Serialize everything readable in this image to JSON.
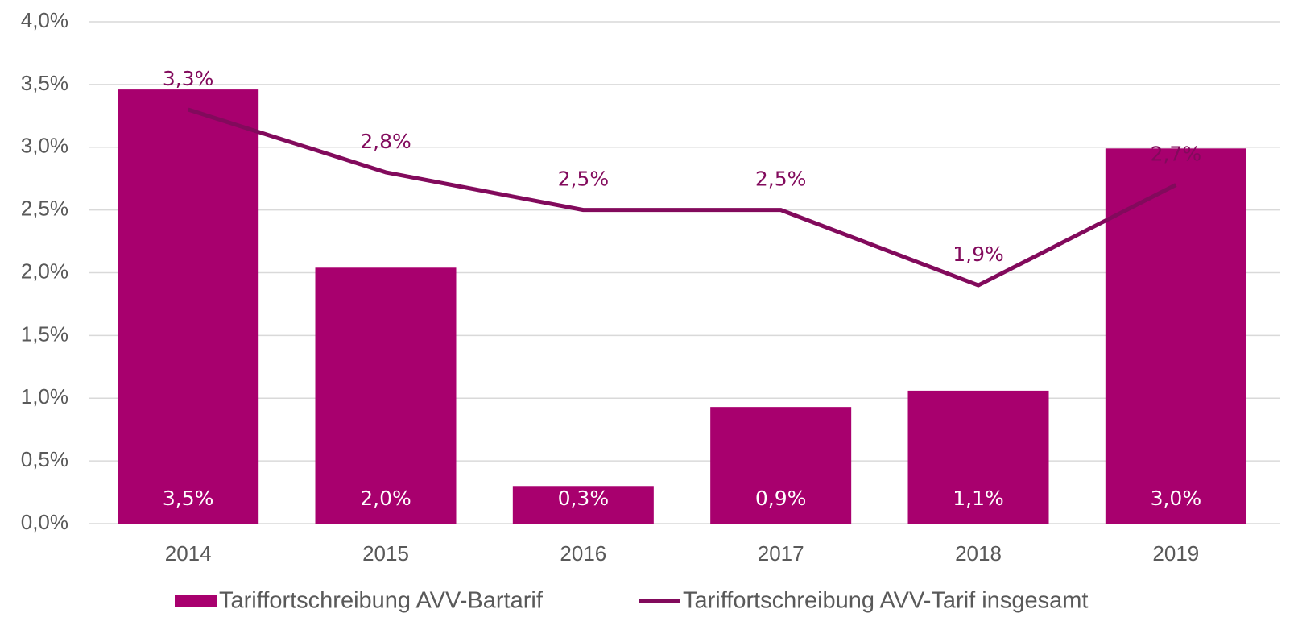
{
  "chart_data": {
    "type": "bar",
    "categories": [
      "2014",
      "2015",
      "2016",
      "2017",
      "2018",
      "2019"
    ],
    "series": [
      {
        "name": "Tariffortschreibung AVV-Bartarif",
        "type": "bar",
        "color": "#a8006e",
        "values": [
          3.46,
          2.04,
          0.3,
          0.93,
          1.06,
          2.99
        ],
        "value_labels": [
          "3,5%",
          "2,0%",
          "0,3%",
          "0,9%",
          "1,1%",
          "3,0%"
        ]
      },
      {
        "name": "Tariffortschreibung AVV-Tarif insgesamt",
        "type": "line",
        "color": "#820a5c",
        "values": [
          3.3,
          2.8,
          2.5,
          2.5,
          1.9,
          2.7
        ],
        "value_labels": [
          "3,3%",
          "2,8%",
          "2,5%",
          "2,5%",
          "1,9%",
          "2,7%"
        ]
      }
    ],
    "ylim": [
      0,
      4
    ],
    "yticks": [
      {
        "value": 0,
        "label": "0,0%"
      },
      {
        "value": 0.5,
        "label": "0,5%"
      },
      {
        "value": 1,
        "label": "1,0%"
      },
      {
        "value": 1.5,
        "label": "1,5%"
      },
      {
        "value": 2,
        "label": "2,0%"
      },
      {
        "value": 2.5,
        "label": "2,5%"
      },
      {
        "value": 3,
        "label": "3,0%"
      },
      {
        "value": 3.5,
        "label": "3,5%"
      },
      {
        "value": 4,
        "label": "4,0%"
      }
    ],
    "grid": true,
    "legend": "bottom"
  }
}
